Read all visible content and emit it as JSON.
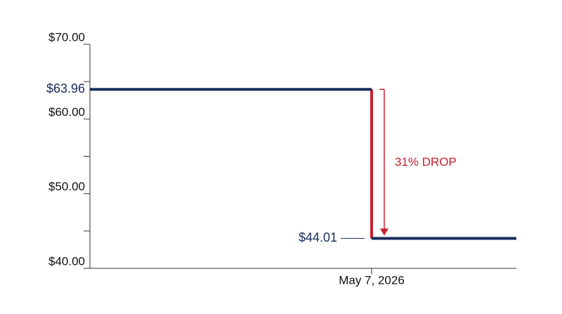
{
  "chart_data": {
    "type": "line",
    "categories": [
      null,
      "May 7, 2026",
      null
    ],
    "series": [
      {
        "color": "#1b2d5c",
        "values": [
          63.96,
          63.96,
          null
        ],
        "value_labels": [
          "$63.96",
          null,
          null
        ]
      },
      {
        "color": "#1b2d5c",
        "values": [
          null,
          44.01,
          44.01
        ],
        "value_labels": [
          null,
          "$44.01",
          null
        ]
      }
    ],
    "drop_color": "#c8202f",
    "annotation": "31% DROP",
    "ylim": [
      40,
      70
    ],
    "yticks": [
      {
        "value": 40,
        "label": "$40.00"
      },
      {
        "value": 50,
        "label": "$50.00"
      },
      {
        "value": 60,
        "label": "$60.00"
      },
      {
        "value": 70,
        "label": "$70.00"
      }
    ],
    "minor_yticks": [
      45,
      55,
      65
    ]
  }
}
